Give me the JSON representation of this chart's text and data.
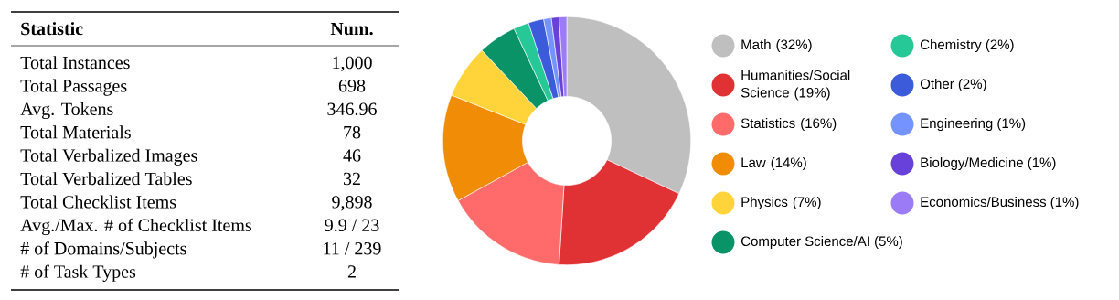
{
  "chart_data": [
    {
      "type": "other",
      "annotations": [
        "Statistic",
        "Num."
      ],
      "categories": [
        "Total Instances",
        "Total Passages",
        "Avg. Tokens",
        "Total Materials",
        "Total Verbalized Images",
        "Total Verbalized Tables",
        "Total Checklist Items",
        "Avg./Max. # of Checklist Items",
        "# of Domains/Subjects",
        "# of Task Types"
      ],
      "value_labels": [
        "1,000",
        "698",
        "346.96",
        "78",
        "46",
        "32",
        "9,898",
        "9.9 / 23",
        "11 / 239",
        "2"
      ]
    },
    {
      "type": "donut",
      "categories": [
        "Math (32%)",
        "Humanities/Social Science (19%)",
        "Statistics (16%)",
        "Law (14%)",
        "Physics (7%)",
        "Computer Science/AI (5%)",
        "Chemistry (2%)",
        "Other (2%)",
        "Engineering (1%)",
        "Biology/Medicine (1%)",
        "Economics/Business (1%)"
      ],
      "values": [
        32,
        19,
        16,
        14,
        7,
        5,
        2,
        2,
        1,
        1,
        1
      ],
      "colors": [
        "#bfbfbf",
        "#e03134",
        "#ff6b6b",
        "#f08c05",
        "#ffd43b",
        "#0a9367",
        "#25c896",
        "#3b5bdb",
        "#7493ff",
        "#6741d9",
        "#9c7bf7"
      ],
      "legend": "right"
    }
  ]
}
